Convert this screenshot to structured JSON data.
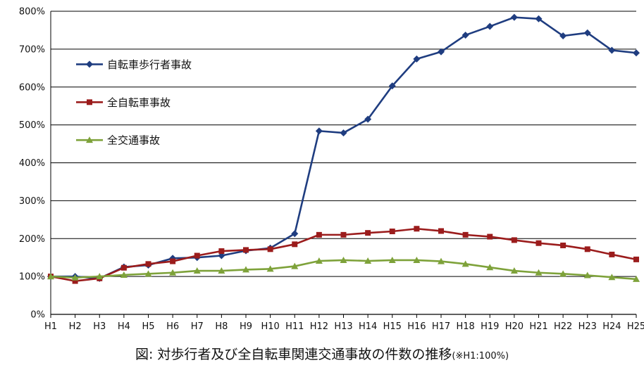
{
  "chart_data": {
    "type": "line",
    "categories": [
      "H1",
      "H2",
      "H3",
      "H4",
      "H5",
      "H6",
      "H7",
      "H8",
      "H9",
      "H10",
      "H11",
      "H12",
      "H13",
      "H14",
      "H15",
      "H16",
      "H17",
      "H18",
      "H19",
      "H20",
      "H21",
      "H22",
      "H23",
      "H24",
      "H25"
    ],
    "ylim": [
      0,
      800
    ],
    "yticks": [
      0,
      100,
      200,
      300,
      400,
      500,
      600,
      700,
      800
    ],
    "ytick_labels": [
      "0%",
      "100%",
      "200%",
      "300%",
      "400%",
      "500%",
      "600%",
      "700%",
      "800%"
    ],
    "grid": "horizontal",
    "legend_position": "top-left",
    "series": [
      {
        "name": "自転車歩行者事故",
        "color": "#1f3d80",
        "marker": "diamond",
        "values": [
          100,
          100,
          95,
          125,
          130,
          148,
          150,
          155,
          168,
          175,
          213,
          484,
          479,
          515,
          603,
          674,
          693,
          737,
          760,
          784,
          780,
          735,
          743,
          697,
          690
        ]
      },
      {
        "name": "全自転車事故",
        "color": "#9b1c1c",
        "marker": "square",
        "values": [
          100,
          88,
          95,
          123,
          133,
          140,
          155,
          167,
          170,
          172,
          185,
          210,
          210,
          215,
          219,
          226,
          220,
          210,
          205,
          196,
          188,
          182,
          172,
          158,
          145
        ]
      },
      {
        "name": "全交通事故",
        "color": "#7ea23a",
        "marker": "triangle",
        "values": [
          100,
          97,
          100,
          104,
          107,
          110,
          115,
          115,
          118,
          120,
          127,
          141,
          143,
          141,
          143,
          143,
          140,
          133,
          124,
          115,
          110,
          107,
          103,
          98,
          93
        ]
      }
    ]
  },
  "caption": {
    "main": "図: 対歩行者及び全自転車関連交通事故の件数の推移",
    "note": "(※H1:100%)"
  }
}
